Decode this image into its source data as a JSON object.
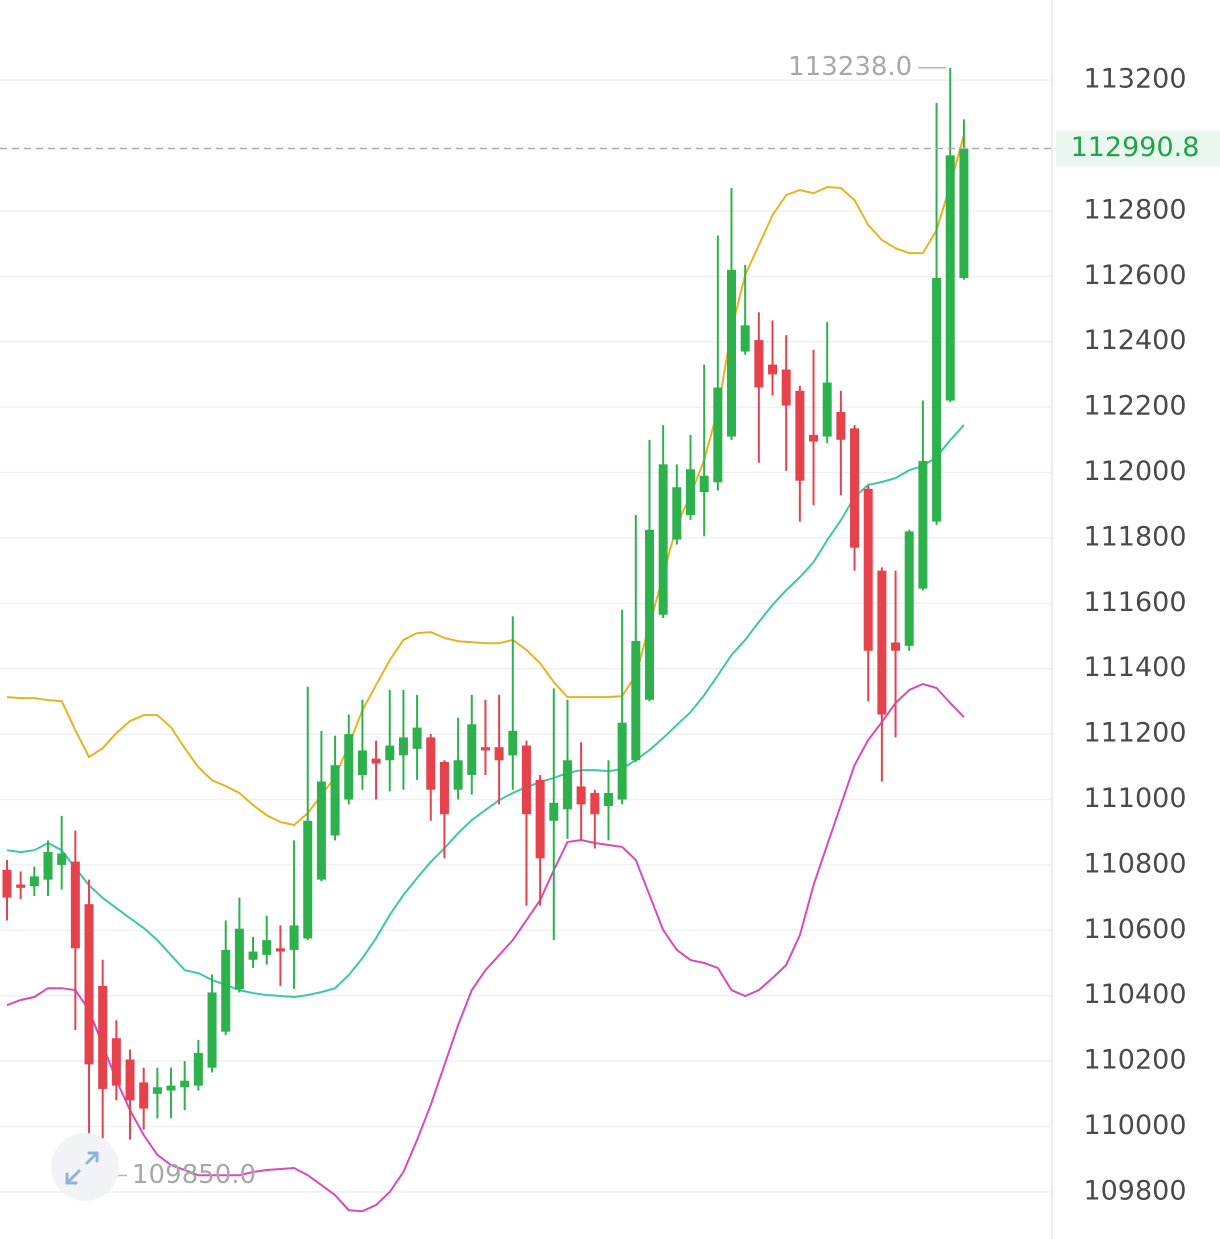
{
  "chart_data": {
    "type": "candlestick",
    "up_color": "#2db14d",
    "down_color": "#e5424d",
    "ylim": [
      109656,
      113445
    ],
    "yticks": [
      113200,
      112800,
      112600,
      112400,
      112200,
      112000,
      111800,
      111600,
      111400,
      111200,
      111000,
      110800,
      110600,
      110400,
      110200,
      110000,
      109800
    ],
    "grid": true,
    "open": [
      110785,
      110740,
      110735,
      110755,
      110800,
      110810,
      110680,
      110430,
      110270,
      110205,
      110135,
      110100,
      110110,
      110120,
      110125,
      110180,
      110290,
      110420,
      110510,
      110525,
      110545,
      110540,
      110575,
      110755,
      110890,
      111000,
      111075,
      111125,
      111120,
      111135,
      111155,
      111190,
      111115,
      111030,
      111075,
      111160,
      111160,
      111135,
      111165,
      111060,
      110935,
      110970,
      111040,
      111020,
      110980,
      111000,
      111120,
      111305,
      111565,
      111795,
      111870,
      111940,
      111970,
      112110,
      112370,
      112405,
      112330,
      112315,
      112250,
      112115,
      112110,
      112185,
      112135,
      111950,
      111700,
      111480,
      111470,
      111645,
      111850,
      112220,
      112595
    ],
    "high": [
      110815,
      110780,
      110795,
      110875,
      110950,
      110905,
      110755,
      110510,
      110325,
      110235,
      110180,
      110180,
      110180,
      110200,
      110265,
      110465,
      110630,
      110700,
      110580,
      110645,
      110615,
      110875,
      111345,
      111210,
      111195,
      111260,
      111305,
      111180,
      111335,
      111335,
      111320,
      111200,
      111120,
      111250,
      111320,
      111305,
      111320,
      111560,
      111180,
      111075,
      111340,
      111305,
      111175,
      111030,
      111120,
      111580,
      111870,
      112100,
      112145,
      112025,
      112115,
      112330,
      112725,
      112870,
      112635,
      112490,
      112465,
      112420,
      112265,
      112375,
      112460,
      112250,
      112145,
      111960,
      111710,
      111700,
      111825,
      112220,
      113130,
      113238,
      113080
    ],
    "low": [
      110630,
      110695,
      110705,
      110705,
      110725,
      110295,
      109850,
      109960,
      110080,
      109960,
      109990,
      110025,
      110025,
      110050,
      110110,
      110165,
      110280,
      110410,
      110485,
      110495,
      110430,
      110420,
      110570,
      110750,
      110875,
      110985,
      111030,
      111000,
      111025,
      111030,
      111060,
      110935,
      110820,
      111000,
      111015,
      111075,
      110985,
      111030,
      110675,
      110675,
      110570,
      110880,
      110875,
      110850,
      110875,
      110985,
      111115,
      111300,
      111555,
      111780,
      111855,
      111805,
      111945,
      112100,
      112360,
      112030,
      112235,
      112005,
      111850,
      111900,
      112090,
      111930,
      111700,
      111300,
      111055,
      111190,
      111455,
      111640,
      111840,
      112215,
      112590
    ],
    "close": [
      110700,
      110730,
      110765,
      110840,
      110835,
      110545,
      110190,
      110115,
      110125,
      110080,
      110055,
      110120,
      110125,
      110140,
      110225,
      110410,
      110540,
      110605,
      110535,
      110570,
      110535,
      110615,
      110935,
      111055,
      111105,
      111200,
      111150,
      111110,
      111165,
      111190,
      111220,
      111030,
      110955,
      111120,
      111230,
      111150,
      111120,
      111210,
      110955,
      110820,
      110990,
      111120,
      110985,
      110955,
      111020,
      111235,
      111485,
      111825,
      112025,
      111955,
      112010,
      111990,
      112260,
      112620,
      112450,
      112260,
      112300,
      112205,
      111975,
      112095,
      112275,
      112100,
      111770,
      111455,
      111260,
      111455,
      111820,
      112035,
      112595,
      112970,
      112990.8
    ],
    "bands": [
      {
        "color": "#e6b422",
        "values": [
          111313,
          111310,
          111310,
          111304,
          111301,
          111212,
          111130,
          111157,
          111203,
          111240,
          111258,
          111258,
          111221,
          111157,
          111099,
          111059,
          111041,
          111020,
          110983,
          110952,
          110931,
          110922,
          110958,
          111013,
          111069,
          111166,
          111273,
          111350,
          111426,
          111488,
          111509,
          111512,
          111494,
          111484,
          111481,
          111478,
          111478,
          111488,
          111457,
          111417,
          111359,
          111313,
          111313,
          111313,
          111313,
          111316,
          111380,
          111533,
          111686,
          111839,
          111931,
          112038,
          112191,
          112436,
          112604,
          112695,
          112787,
          112848,
          112864,
          112854,
          112873,
          112870,
          112833,
          112757,
          112711,
          112686,
          112671,
          112671,
          112741,
          112879,
          113032
        ]
      },
      {
        "color": "#3cc7a6",
        "values": [
          110845,
          110839,
          110845,
          110867,
          110845,
          110790,
          110738,
          110699,
          110668,
          110637,
          110607,
          110570,
          110524,
          110478,
          110469,
          110448,
          110433,
          110417,
          110408,
          110402,
          110399,
          110396,
          110402,
          110411,
          110423,
          110463,
          110515,
          110576,
          110647,
          110708,
          110760,
          110809,
          110851,
          110897,
          110937,
          110968,
          110998,
          111020,
          111038,
          111053,
          111066,
          111081,
          111090,
          111090,
          111087,
          111093,
          111121,
          111151,
          111188,
          111228,
          111267,
          111319,
          111380,
          111442,
          111488,
          111543,
          111595,
          111640,
          111680,
          111726,
          111793,
          111854,
          111925,
          111962,
          111971,
          111983,
          112007,
          112020,
          112047,
          112099,
          112145
        ]
      },
      {
        "color": "#d64bbd",
        "values": [
          110371,
          110387,
          110396,
          110423,
          110423,
          110417,
          110356,
          110249,
          110142,
          110050,
          109974,
          109913,
          109882,
          109867,
          109851,
          109851,
          109851,
          109851,
          109861,
          109867,
          109870,
          109873,
          109851,
          109821,
          109790,
          109744,
          109741,
          109760,
          109800,
          109861,
          109959,
          110066,
          110188,
          110310,
          110417,
          110478,
          110524,
          110570,
          110631,
          110692,
          110784,
          110870,
          110876,
          110867,
          110861,
          110855,
          110815,
          110708,
          110601,
          110540,
          110509,
          110500,
          110485,
          110417,
          110399,
          110417,
          110454,
          110494,
          110585,
          110738,
          110861,
          110983,
          111105,
          111182,
          111237,
          111295,
          111335,
          111353,
          111341,
          111295,
          111252
        ]
      }
    ],
    "last_price": 112990.8,
    "last_price_color": "#22a24a",
    "annotations": [
      {
        "value": 113238,
        "label": "113238.0"
      },
      {
        "value": 109850,
        "label": "109850.0"
      }
    ]
  }
}
